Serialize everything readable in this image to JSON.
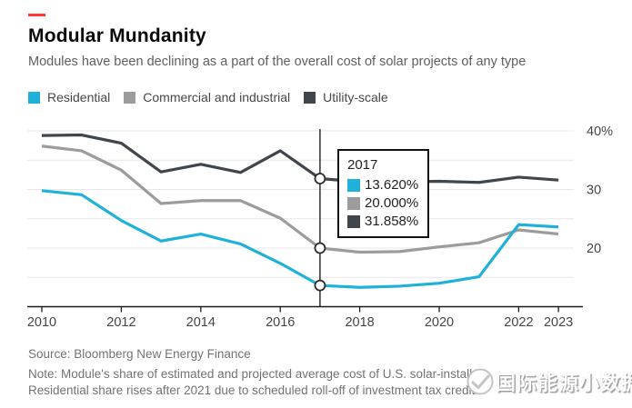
{
  "colors": {
    "accent_dash": "#ff3b30",
    "residential": "#1fb1d9",
    "commercial": "#9c9c9c",
    "utility": "#41464d",
    "axis": "#1a1a1a",
    "gridline": "#e7e7e7"
  },
  "header": {
    "title": "Modular Mundanity",
    "subtitle": "Modules have been declining as a part of the overall cost of solar projects of any type"
  },
  "legend": [
    {
      "label": "Residential",
      "color": "#1fb1d9"
    },
    {
      "label": "Commercial and industrial",
      "color": "#9c9c9c"
    },
    {
      "label": "Utility-scale",
      "color": "#41464d"
    }
  ],
  "tooltip": {
    "year": "2017",
    "rows": [
      {
        "series": "Residential",
        "color": "#1fb1d9",
        "value": "13.620%"
      },
      {
        "series": "Commercial and industrial",
        "color": "#9c9c9c",
        "value": "20.000%"
      },
      {
        "series": "Utility-scale",
        "color": "#41464d",
        "value": "31.858%"
      }
    ]
  },
  "chart_data": {
    "type": "line",
    "x": [
      2010,
      2011,
      2012,
      2013,
      2014,
      2015,
      2016,
      2017,
      2018,
      2019,
      2020,
      2021,
      2022,
      2023
    ],
    "series": [
      {
        "name": "Residential",
        "color": "#1fb1d9",
        "values": [
          29.8,
          29.1,
          24.7,
          21.2,
          22.4,
          20.7,
          17.4,
          13.62,
          13.3,
          13.5,
          14.0,
          15.1,
          24.0,
          23.6
        ]
      },
      {
        "name": "Commercial and industrial",
        "color": "#9c9c9c",
        "values": [
          37.4,
          36.6,
          33.3,
          27.6,
          28.1,
          28.1,
          25.1,
          20.0,
          19.3,
          19.4,
          20.2,
          20.9,
          23.1,
          22.4
        ]
      },
      {
        "name": "Utility-scale",
        "color": "#41464d",
        "values": [
          39.2,
          39.3,
          37.9,
          33.0,
          34.3,
          32.9,
          36.6,
          31.858,
          31.3,
          31.3,
          31.4,
          31.2,
          32.1,
          31.6
        ]
      }
    ],
    "title": "Modular Mundanity",
    "xlabel": "",
    "ylabel": "",
    "ylim": [
      10,
      41
    ],
    "grid": true,
    "gridline_step": 5,
    "xticks": [
      2010,
      2012,
      2014,
      2016,
      2018,
      2020,
      2022,
      2023
    ],
    "yticks": [
      {
        "v": 40,
        "label": "40%"
      },
      {
        "v": 30,
        "label": "30"
      },
      {
        "v": 20,
        "label": "20"
      }
    ],
    "crosshair": {
      "x": 2017,
      "marker_values": [
        31.858,
        20.0,
        13.62
      ]
    },
    "legend_position": "top"
  },
  "footer": {
    "source": "Source: Bloomberg New Energy Finance",
    "note_line1": "Note: Module's share of estimated and projected average cost of U.S. solar-installati",
    "note_line2": "Residential share rises after 2021 due to scheduled roll-off of investment tax credit."
  },
  "watermark": {
    "text": "国际能源小数据"
  }
}
